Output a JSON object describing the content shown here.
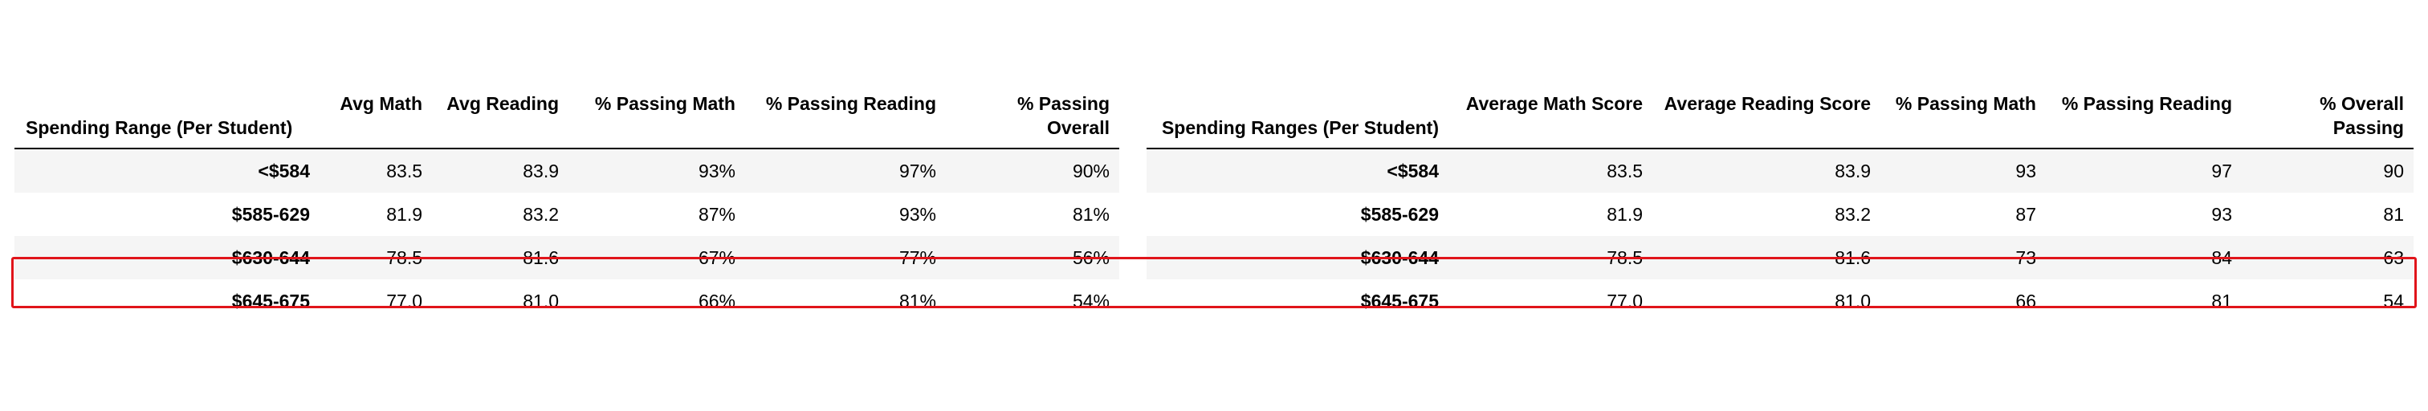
{
  "left_table": {
    "headers": [
      "Spending Range (Per Student)",
      "Avg Math",
      "Avg Reading",
      "% Passing Math",
      "% Passing Reading",
      "% Passing Overall"
    ],
    "rows": [
      [
        "<$584",
        "83.5",
        "83.9",
        "93%",
        "97%",
        "90%"
      ],
      [
        "$585-629",
        "81.9",
        "83.2",
        "87%",
        "93%",
        "81%"
      ],
      [
        "$630-644",
        "78.5",
        "81.6",
        "67%",
        "77%",
        "56%"
      ],
      [
        "$645-675",
        "77.0",
        "81.0",
        "66%",
        "81%",
        "54%"
      ]
    ]
  },
  "right_table": {
    "headers": [
      "Spending Ranges (Per Student)",
      "Average Math Score",
      "Average Reading Score",
      "% Passing Math",
      "% Passing Reading",
      "% Overall Passing"
    ],
    "rows": [
      [
        "<$584",
        "83.5",
        "83.9",
        "93",
        "97",
        "90"
      ],
      [
        "$585-629",
        "81.9",
        "83.2",
        "87",
        "93",
        "81"
      ],
      [
        "$630-644",
        "78.5",
        "81.6",
        "73",
        "84",
        "63"
      ],
      [
        "$645-675",
        "77.0",
        "81.0",
        "66",
        "81",
        "54"
      ]
    ]
  },
  "highlight": {
    "row_index": 2,
    "color": "#e0141a"
  }
}
